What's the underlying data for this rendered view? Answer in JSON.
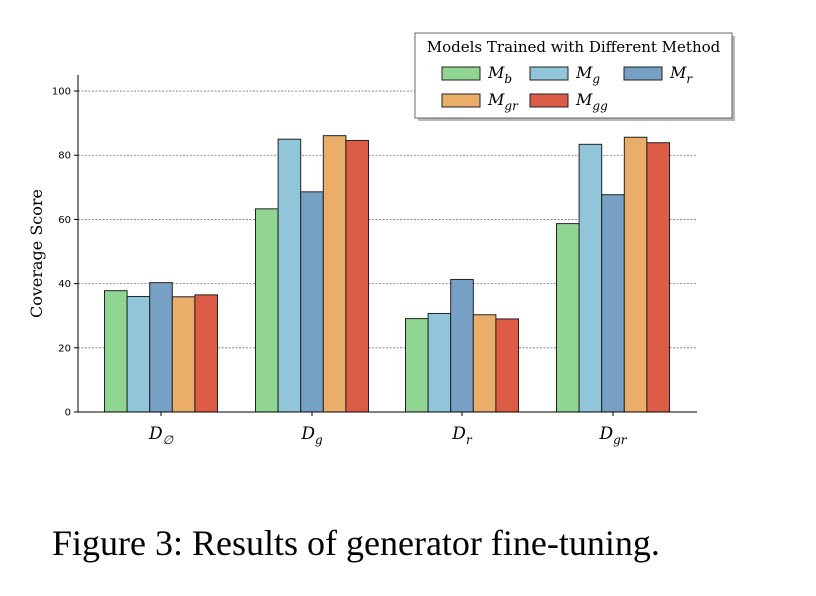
{
  "chart_data": {
    "type": "bar",
    "title": "",
    "xlabel": "",
    "ylabel": "Coverage Score",
    "ylim": [
      0,
      105
    ],
    "yticks": [
      0,
      20,
      40,
      60,
      80,
      100
    ],
    "grid": "y-dashed",
    "categories": [
      {
        "base": "D",
        "sub": "∅"
      },
      {
        "base": "D",
        "sub": "g"
      },
      {
        "base": "D",
        "sub": "r"
      },
      {
        "base": "D",
        "sub": "gr"
      }
    ],
    "legend": {
      "title": "Models Trained with Different Method",
      "placement": "top-right"
    },
    "series": [
      {
        "name": "Mb",
        "base": "M",
        "sub": "b",
        "color": "#90d592",
        "values": [
          37.8,
          63.3,
          29.1,
          58.7
        ]
      },
      {
        "name": "Mg",
        "base": "M",
        "sub": "g",
        "color": "#91c6da",
        "values": [
          36.0,
          85.0,
          30.7,
          83.4
        ]
      },
      {
        "name": "Mr",
        "base": "M",
        "sub": "r",
        "color": "#76a1c4",
        "values": [
          40.3,
          68.6,
          41.3,
          67.7
        ]
      },
      {
        "name": "Mgr",
        "base": "M",
        "sub": "gr",
        "color": "#ebad6a",
        "values": [
          35.9,
          86.1,
          30.3,
          85.6
        ]
      },
      {
        "name": "Mgg",
        "base": "M",
        "sub": "gg",
        "color": "#dd5c45",
        "values": [
          36.5,
          84.6,
          29.0,
          83.9
        ]
      }
    ]
  },
  "caption": "Figure 3: Results of generator fine-tuning."
}
